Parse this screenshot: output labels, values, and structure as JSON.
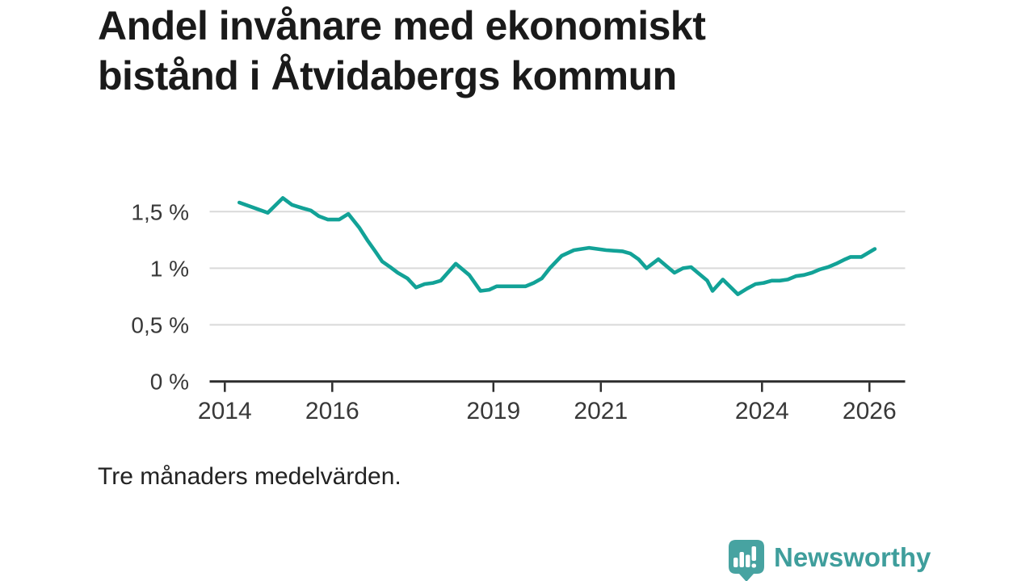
{
  "title": "Andel invånare med ekonomiskt\nbistånd i Åtvidabergs kommun",
  "footnote": "Tre månaders medelvärden.",
  "branding": {
    "logo_text": "Newsworthy",
    "icon": "newsworthy-speech-bubble-bar-chart-icon",
    "icon_color": "#47a3a1",
    "text_color": "#3f9e9c"
  },
  "colors": {
    "background": "#ffffff",
    "title_text": "#1a1a1a",
    "tick_text": "#383838",
    "grid": "#d9d9d9",
    "axis": "#2d2d2d",
    "line": "#12a297"
  },
  "chart_data": {
    "type": "line",
    "title": "Andel invånare med ekonomiskt bistånd i Åtvidabergs kommun",
    "subtitle": "Tre månaders medelvärden.",
    "unit": "%",
    "decimal_style": "swedish-comma",
    "grid": "horizontal-only",
    "legend": "none",
    "xlim": [
      2013.72,
      2026.66
    ],
    "ylim": [
      0,
      1.72
    ],
    "x_ticks": [
      2014,
      2016,
      2019,
      2021,
      2024,
      2026
    ],
    "y_ticks": [
      {
        "value": 1.5,
        "label": "1,5 %"
      },
      {
        "value": 1.0,
        "label": "1 %"
      },
      {
        "value": 0.5,
        "label": "0,5 %"
      },
      {
        "value": 0.0,
        "label": "0 %"
      }
    ],
    "series": [
      {
        "name": "Andel invånare med ekonomiskt bistånd",
        "points": [
          [
            2014.27,
            1.58
          ],
          [
            2014.8,
            1.49
          ],
          [
            2015.08,
            1.62
          ],
          [
            2015.25,
            1.56
          ],
          [
            2015.45,
            1.53
          ],
          [
            2015.6,
            1.51
          ],
          [
            2015.75,
            1.46
          ],
          [
            2015.92,
            1.43
          ],
          [
            2016.13,
            1.43
          ],
          [
            2016.3,
            1.48
          ],
          [
            2016.5,
            1.36
          ],
          [
            2016.65,
            1.25
          ],
          [
            2016.8,
            1.15
          ],
          [
            2016.93,
            1.06
          ],
          [
            2017.08,
            1.01
          ],
          [
            2017.22,
            0.96
          ],
          [
            2017.4,
            0.91
          ],
          [
            2017.56,
            0.83
          ],
          [
            2017.72,
            0.86
          ],
          [
            2017.88,
            0.87
          ],
          [
            2018.02,
            0.89
          ],
          [
            2018.3,
            1.04
          ],
          [
            2018.55,
            0.94
          ],
          [
            2018.76,
            0.8
          ],
          [
            2018.92,
            0.81
          ],
          [
            2019.06,
            0.84
          ],
          [
            2019.6,
            0.84
          ],
          [
            2019.75,
            0.87
          ],
          [
            2019.9,
            0.91
          ],
          [
            2020.05,
            1.0
          ],
          [
            2020.27,
            1.11
          ],
          [
            2020.5,
            1.16
          ],
          [
            2020.78,
            1.18
          ],
          [
            2021.1,
            1.16
          ],
          [
            2021.4,
            1.15
          ],
          [
            2021.55,
            1.13
          ],
          [
            2021.7,
            1.08
          ],
          [
            2021.85,
            1.0
          ],
          [
            2022.07,
            1.08
          ],
          [
            2022.22,
            1.02
          ],
          [
            2022.37,
            0.96
          ],
          [
            2022.53,
            1.0
          ],
          [
            2022.68,
            1.01
          ],
          [
            2022.83,
            0.95
          ],
          [
            2022.98,
            0.89
          ],
          [
            2023.08,
            0.8
          ],
          [
            2023.27,
            0.9
          ],
          [
            2023.55,
            0.77
          ],
          [
            2023.72,
            0.82
          ],
          [
            2023.88,
            0.86
          ],
          [
            2024.03,
            0.87
          ],
          [
            2024.18,
            0.89
          ],
          [
            2024.33,
            0.89
          ],
          [
            2024.48,
            0.9
          ],
          [
            2024.63,
            0.93
          ],
          [
            2024.78,
            0.94
          ],
          [
            2024.93,
            0.96
          ],
          [
            2025.08,
            0.99
          ],
          [
            2025.23,
            1.01
          ],
          [
            2025.38,
            1.04
          ],
          [
            2025.55,
            1.08
          ],
          [
            2025.65,
            1.1
          ],
          [
            2025.85,
            1.1
          ],
          [
            2026.1,
            1.17
          ]
        ]
      }
    ]
  }
}
